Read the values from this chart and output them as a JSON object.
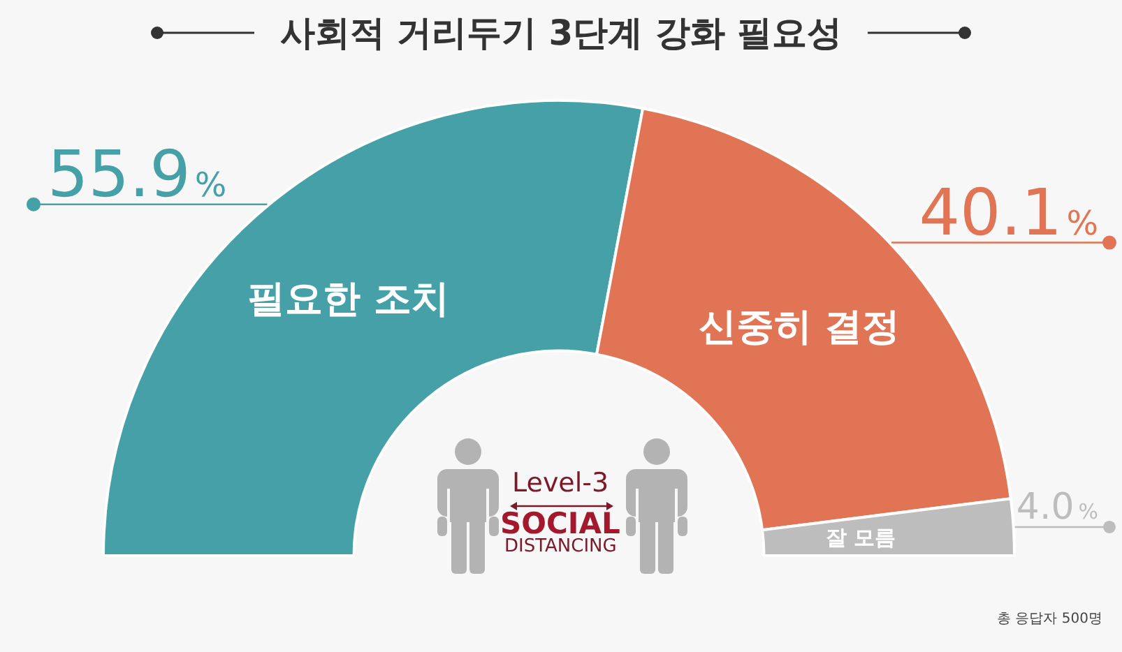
{
  "chart_data": {
    "type": "donut",
    "title": "사회적 거리두기 3단계 강화 필요성",
    "categories": [
      "필요한 조치",
      "신중히 결정",
      "잘 모름"
    ],
    "values": [
      55.9,
      40.1,
      4.0
    ],
    "colors": [
      "#45a1a7",
      "#e07455",
      "#bdbdbd"
    ],
    "value_labels": [
      "55.9%",
      "40.1%",
      "4.0%"
    ],
    "annotations": [
      "Level-3",
      "SOCIAL",
      "DISTANCING",
      "총 응답자 500명"
    ]
  }
}
